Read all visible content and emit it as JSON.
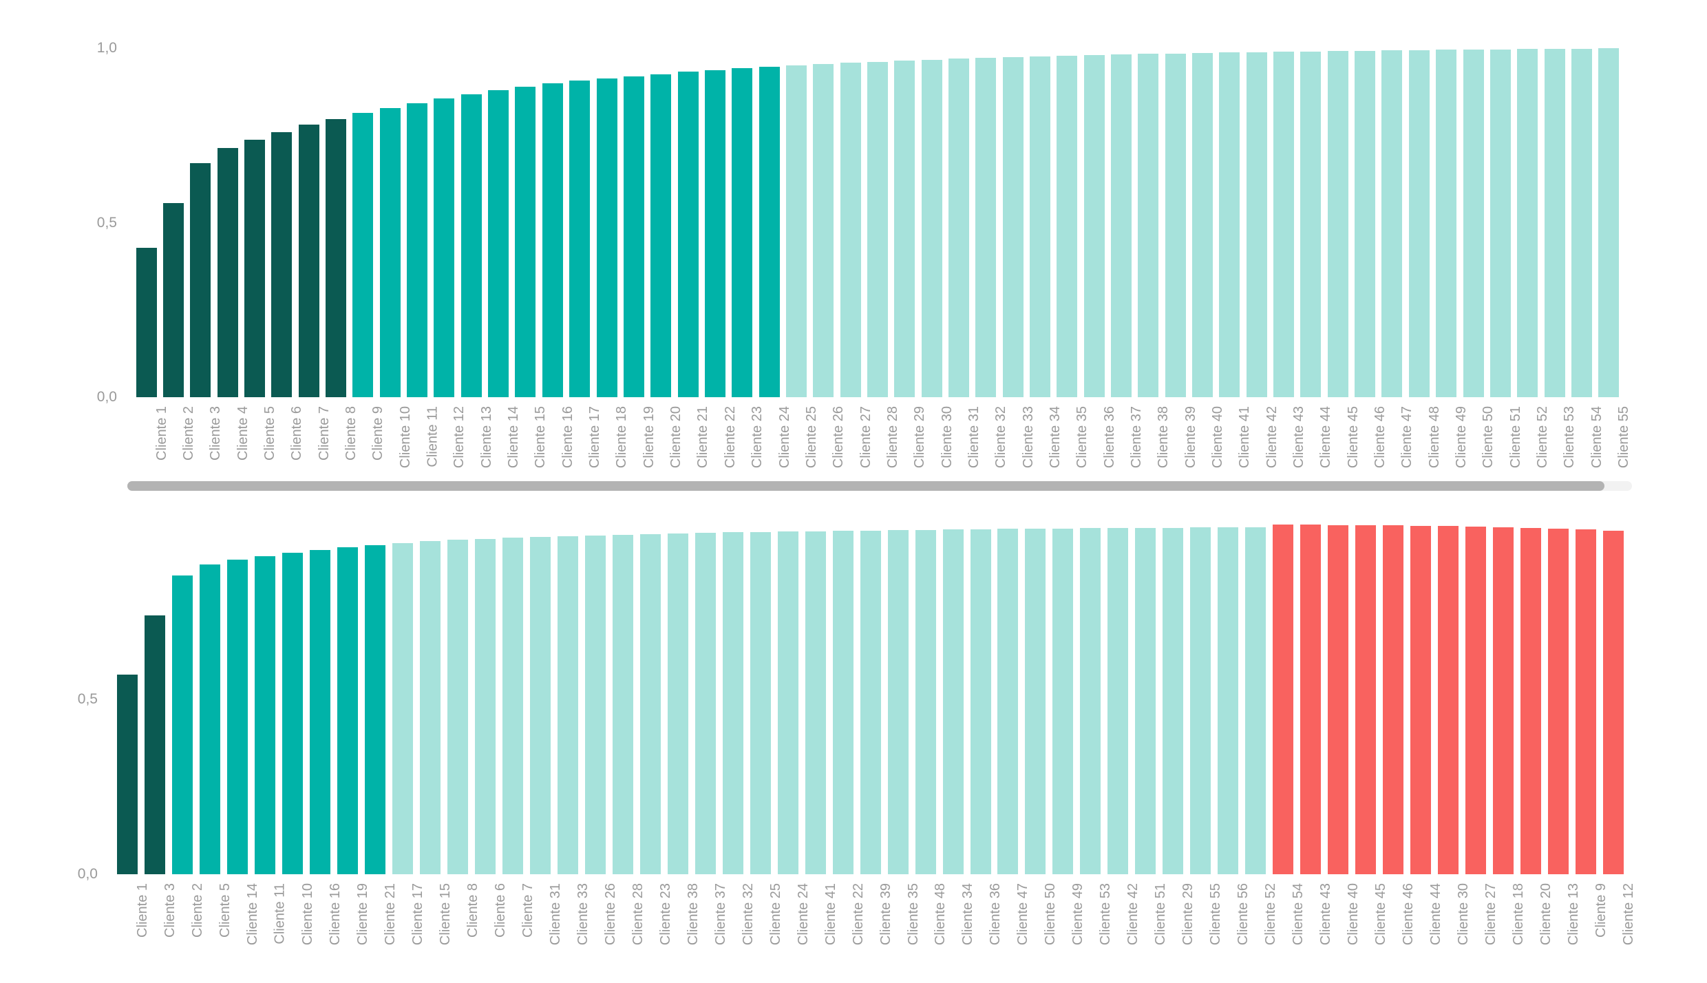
{
  "palette": {
    "dark_teal": "#0B5A52",
    "teal": "#00B3A8",
    "light_teal": "#A6E2DB",
    "red": "#F9625F",
    "axis_label": "#9A9A9A",
    "scrollbar_thumb": "#B3B3B3",
    "scrollbar_track": "#F2F2F2",
    "background": "#FFFFFF"
  },
  "scrollbar": {
    "orientation": "horizontal",
    "thumb_covers": "most of track"
  },
  "chart_data": [
    {
      "type": "bar",
      "title": "",
      "xlabel": "",
      "ylabel": "",
      "ylim": [
        0,
        1
      ],
      "grid": false,
      "legend": null,
      "y_ticks": [
        {
          "label": "0,0",
          "value": 0.0
        },
        {
          "label": "0,5",
          "value": 0.5
        },
        {
          "label": "1,0",
          "value": 1.0
        }
      ],
      "categories": [
        "Cliente 1",
        "Cliente 2",
        "Cliente 3",
        "Cliente 4",
        "Cliente 5",
        "Cliente 6",
        "Cliente 7",
        "Cliente 8",
        "Cliente 9",
        "Cliente 10",
        "Cliente 11",
        "Cliente 12",
        "Cliente 13",
        "Cliente 14",
        "Cliente 15",
        "Cliente 16",
        "Cliente 17",
        "Cliente 18",
        "Cliente 19",
        "Cliente 20",
        "Cliente 21",
        "Cliente 22",
        "Cliente 23",
        "Cliente 24",
        "Cliente 25",
        "Cliente 26",
        "Cliente 27",
        "Cliente 28",
        "Cliente 29",
        "Cliente 30",
        "Cliente 31",
        "Cliente 32",
        "Cliente 33",
        "Cliente 34",
        "Cliente 35",
        "Cliente 36",
        "Cliente 37",
        "Cliente 38",
        "Cliente 39",
        "Cliente 40",
        "Cliente 41",
        "Cliente 42",
        "Cliente 43",
        "Cliente 44",
        "Cliente 45",
        "Cliente 46",
        "Cliente 47",
        "Cliente 48",
        "Cliente 49",
        "Cliente 50",
        "Cliente 51",
        "Cliente 52",
        "Cliente 53",
        "Cliente 54",
        "Cliente 55"
      ],
      "values": [
        0.428,
        0.556,
        0.671,
        0.714,
        0.738,
        0.76,
        0.781,
        0.797,
        0.815,
        0.828,
        0.842,
        0.856,
        0.868,
        0.88,
        0.89,
        0.899,
        0.907,
        0.914,
        0.92,
        0.926,
        0.932,
        0.937,
        0.942,
        0.947,
        0.951,
        0.955,
        0.958,
        0.961,
        0.964,
        0.967,
        0.97,
        0.972,
        0.974,
        0.976,
        0.978,
        0.98,
        0.982,
        0.984,
        0.985,
        0.986,
        0.988,
        0.989,
        0.99,
        0.991,
        0.992,
        0.993,
        0.994,
        0.995,
        0.996,
        0.997,
        0.997,
        0.998,
        0.999,
        0.999,
        1.0
      ],
      "color_segments": [
        {
          "color": "dark_teal",
          "from": 0,
          "to": 7
        },
        {
          "color": "teal",
          "from": 8,
          "to": 23
        },
        {
          "color": "light_teal",
          "from": 24,
          "to": 54
        }
      ]
    },
    {
      "type": "bar",
      "title": "",
      "xlabel": "",
      "ylabel": "",
      "ylim": [
        0,
        1
      ],
      "grid": false,
      "legend": null,
      "y_ticks": [
        {
          "label": "0,0",
          "value": 0.0
        },
        {
          "label": "0,5",
          "value": 0.5
        }
      ],
      "categories": [
        "Cliente 1",
        "Cliente 3",
        "Cliente 2",
        "Cliente 5",
        "Cliente 14",
        "Cliente 11",
        "Cliente 10",
        "Cliente 16",
        "Cliente 19",
        "Cliente 21",
        "Cliente 17",
        "Cliente 15",
        "Cliente 8",
        "Cliente 6",
        "Cliente 7",
        "Cliente 31",
        "Cliente 33",
        "Cliente 26",
        "Cliente 28",
        "Cliente 23",
        "Cliente 38",
        "Cliente 37",
        "Cliente 32",
        "Cliente 25",
        "Cliente 24",
        "Cliente 41",
        "Cliente 22",
        "Cliente 39",
        "Cliente 35",
        "Cliente 48",
        "Cliente 34",
        "Cliente 36",
        "Cliente 47",
        "Cliente 50",
        "Cliente 49",
        "Cliente 53",
        "Cliente 42",
        "Cliente 51",
        "Cliente 29",
        "Cliente 55",
        "Cliente 56",
        "Cliente 52",
        "Cliente 54",
        "Cliente 43",
        "Cliente 40",
        "Cliente 45",
        "Cliente 46",
        "Cliente 44",
        "Cliente 30",
        "Cliente 27",
        "Cliente 18",
        "Cliente 20",
        "Cliente 13",
        "Cliente 9",
        "Cliente 12"
      ],
      "values": [
        0.57,
        0.74,
        0.855,
        0.885,
        0.9,
        0.91,
        0.92,
        0.928,
        0.935,
        0.941,
        0.947,
        0.952,
        0.956,
        0.959,
        0.962,
        0.965,
        0.967,
        0.969,
        0.971,
        0.973,
        0.975,
        0.977,
        0.978,
        0.979,
        0.98,
        0.981,
        0.982,
        0.983,
        0.984,
        0.985,
        0.986,
        0.987,
        0.988,
        0.988,
        0.989,
        0.99,
        0.99,
        0.991,
        0.991,
        0.992,
        0.992,
        0.993,
        1.0,
        1.0,
        0.999,
        0.998,
        0.998,
        0.997,
        0.996,
        0.995,
        0.993,
        0.991,
        0.988,
        0.986,
        0.983
      ],
      "color_segments": [
        {
          "color": "dark_teal",
          "from": 0,
          "to": 1
        },
        {
          "color": "teal",
          "from": 2,
          "to": 9
        },
        {
          "color": "light_teal",
          "from": 10,
          "to": 41
        },
        {
          "color": "red",
          "from": 42,
          "to": 54
        }
      ]
    }
  ]
}
